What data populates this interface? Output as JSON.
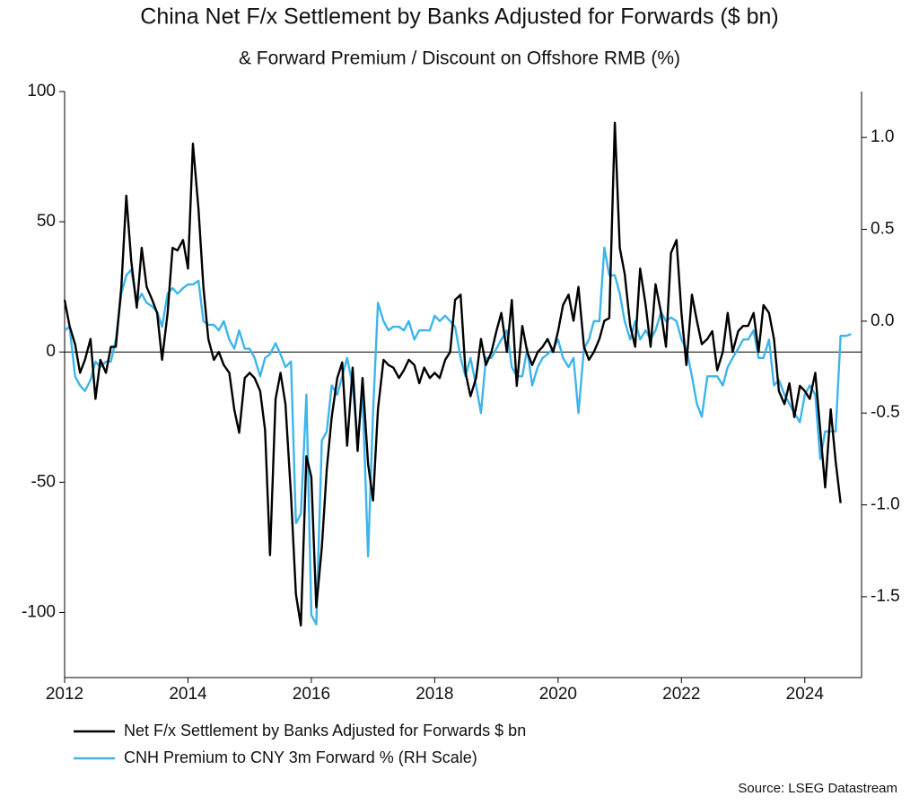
{
  "chart_data": {
    "type": "line",
    "title": "China Net F/x Settlement by Banks Adjusted for Forwards ($ bn)",
    "subtitle": "& Forward Premium / Discount on Offshore RMB (%)",
    "source": "Source: LSEG Datastream",
    "xlim": [
      2012,
      2024.92
    ],
    "xticks": [
      2012,
      2014,
      2016,
      2018,
      2020,
      2022,
      2024
    ],
    "ylim": [
      -125,
      100
    ],
    "yticks": [
      -100,
      -50,
      0,
      50,
      100
    ],
    "y2lim": [
      -1.94,
      1.25
    ],
    "y2ticks": [
      {
        "value": -1.5,
        "label": "-1.5"
      },
      {
        "value": -1,
        "label": "-1.0"
      },
      {
        "value": -0.5,
        "label": "-0.5"
      },
      {
        "value": 0,
        "label": "0.0"
      },
      {
        "value": 0.5,
        "label": "0.5"
      },
      {
        "value": 1,
        "label": "1.0"
      }
    ],
    "series": [
      {
        "name": "Net F/x Settlement by Banks Adjusted for Forwards $ bn",
        "color": "#000000",
        "axis": "y",
        "x": [
          2012,
          2012.08,
          2012.17,
          2012.25,
          2012.33,
          2012.42,
          2012.5,
          2012.58,
          2012.67,
          2012.75,
          2012.83,
          2012.92,
          2013,
          2013.08,
          2013.17,
          2013.25,
          2013.33,
          2013.42,
          2013.5,
          2013.58,
          2013.67,
          2013.75,
          2013.83,
          2013.92,
          2014,
          2014.08,
          2014.17,
          2014.25,
          2014.33,
          2014.42,
          2014.5,
          2014.58,
          2014.67,
          2014.75,
          2014.83,
          2014.92,
          2015,
          2015.08,
          2015.17,
          2015.25,
          2015.33,
          2015.42,
          2015.5,
          2015.58,
          2015.67,
          2015.75,
          2015.83,
          2015.92,
          2016,
          2016.08,
          2016.17,
          2016.25,
          2016.33,
          2016.42,
          2016.5,
          2016.58,
          2016.67,
          2016.75,
          2016.83,
          2016.92,
          2017,
          2017.08,
          2017.17,
          2017.25,
          2017.33,
          2017.42,
          2017.5,
          2017.58,
          2017.67,
          2017.75,
          2017.83,
          2017.92,
          2018,
          2018.08,
          2018.17,
          2018.25,
          2018.33,
          2018.42,
          2018.5,
          2018.58,
          2018.67,
          2018.75,
          2018.83,
          2018.92,
          2019,
          2019.08,
          2019.17,
          2019.25,
          2019.33,
          2019.42,
          2019.5,
          2019.58,
          2019.67,
          2019.75,
          2019.83,
          2019.92,
          2020,
          2020.08,
          2020.17,
          2020.25,
          2020.33,
          2020.42,
          2020.5,
          2020.58,
          2020.67,
          2020.75,
          2020.83,
          2020.92,
          2021,
          2021.08,
          2021.17,
          2021.25,
          2021.33,
          2021.42,
          2021.5,
          2021.58,
          2021.67,
          2021.75,
          2021.83,
          2021.92,
          2022,
          2022.08,
          2022.17,
          2022.25,
          2022.33,
          2022.42,
          2022.5,
          2022.58,
          2022.67,
          2022.75,
          2022.83,
          2022.92,
          2023,
          2023.08,
          2023.17,
          2023.25,
          2023.33,
          2023.42,
          2023.5,
          2023.58,
          2023.67,
          2023.75,
          2023.83,
          2023.92,
          2024,
          2024.08,
          2024.17,
          2024.25,
          2024.33,
          2024.42,
          2024.5,
          2024.58
        ],
        "values": [
          20,
          10,
          3,
          -8,
          -3,
          5,
          -18,
          -3,
          -8,
          2,
          2,
          25,
          60,
          35,
          17,
          40,
          25,
          20,
          15,
          -3,
          15,
          40,
          39,
          43,
          32,
          80,
          55,
          25,
          5,
          -3,
          0,
          -5,
          -8,
          -22,
          -31,
          -10,
          -8,
          -10,
          -15,
          -30,
          -78,
          -18,
          -8,
          -20,
          -55,
          -93,
          -105,
          -40,
          -48,
          -98,
          -75,
          -45,
          -25,
          -10,
          -4,
          -36,
          -6,
          -38,
          -10,
          -43,
          -57,
          -22,
          -3,
          -5,
          -6,
          -10,
          -7,
          -3,
          -5,
          -12,
          -6,
          -10,
          -8,
          -10,
          -3,
          0,
          20,
          22,
          -8,
          -17,
          -10,
          5,
          -5,
          0,
          8,
          15,
          0,
          20,
          -13,
          10,
          0,
          -5,
          0,
          2,
          5,
          0,
          8,
          18,
          22,
          12,
          25,
          2,
          -3,
          0,
          5,
          12,
          13,
          88,
          40,
          30,
          10,
          2,
          32,
          18,
          2,
          26,
          15,
          2,
          38,
          43,
          15,
          -5,
          22,
          12,
          3,
          5,
          8,
          -7,
          0,
          15,
          0,
          8,
          10,
          10,
          15,
          0,
          18,
          15,
          5,
          -15,
          -20,
          -12,
          -25,
          -13,
          -15,
          -18,
          -8,
          -30,
          -52,
          -22,
          -42,
          -58
        ]
      },
      {
        "name": "CNH Premium to CNY 3m Forward % (RH Scale)",
        "color": "#3db5ea",
        "axis": "y2",
        "x": [
          2012,
          2012.08,
          2012.17,
          2012.25,
          2012.33,
          2012.42,
          2012.5,
          2012.58,
          2012.67,
          2012.75,
          2012.83,
          2012.92,
          2013,
          2013.08,
          2013.17,
          2013.25,
          2013.33,
          2013.42,
          2013.5,
          2013.58,
          2013.67,
          2013.75,
          2013.83,
          2013.92,
          2014,
          2014.08,
          2014.17,
          2014.25,
          2014.33,
          2014.42,
          2014.5,
          2014.58,
          2014.67,
          2014.75,
          2014.83,
          2014.92,
          2015,
          2015.08,
          2015.17,
          2015.25,
          2015.33,
          2015.42,
          2015.5,
          2015.58,
          2015.67,
          2015.75,
          2015.83,
          2015.92,
          2016,
          2016.08,
          2016.17,
          2016.25,
          2016.33,
          2016.42,
          2016.5,
          2016.58,
          2016.67,
          2016.75,
          2016.83,
          2016.92,
          2017,
          2017.08,
          2017.17,
          2017.25,
          2017.33,
          2017.42,
          2017.5,
          2017.58,
          2017.67,
          2017.75,
          2017.83,
          2017.92,
          2018,
          2018.08,
          2018.17,
          2018.25,
          2018.33,
          2018.42,
          2018.5,
          2018.58,
          2018.67,
          2018.75,
          2018.83,
          2018.92,
          2019,
          2019.08,
          2019.17,
          2019.25,
          2019.33,
          2019.42,
          2019.5,
          2019.58,
          2019.67,
          2019.75,
          2019.83,
          2019.92,
          2020,
          2020.08,
          2020.17,
          2020.25,
          2020.33,
          2020.42,
          2020.5,
          2020.58,
          2020.67,
          2020.75,
          2020.83,
          2020.92,
          2021,
          2021.08,
          2021.17,
          2021.25,
          2021.33,
          2021.42,
          2021.5,
          2021.58,
          2021.67,
          2021.75,
          2021.83,
          2021.92,
          2022,
          2022.08,
          2022.17,
          2022.25,
          2022.33,
          2022.42,
          2022.5,
          2022.58,
          2022.67,
          2022.75,
          2022.83,
          2022.92,
          2023,
          2023.08,
          2023.17,
          2023.25,
          2023.33,
          2023.42,
          2023.5,
          2023.58,
          2023.67,
          2023.75,
          2023.83,
          2023.92,
          2024,
          2024.08,
          2024.17,
          2024.25,
          2024.33,
          2024.42,
          2024.5,
          2024.58,
          2024.67,
          2024.75
        ],
        "values": [
          -0.05,
          -0.03,
          -0.3,
          -0.35,
          -0.38,
          -0.32,
          -0.22,
          -0.25,
          -0.22,
          -0.22,
          -0.1,
          0.15,
          0.25,
          0.28,
          0.1,
          0.15,
          0.1,
          0.08,
          0.05,
          -0.03,
          0.15,
          0.18,
          0.15,
          0.18,
          0.2,
          0.2,
          0.22,
          0,
          -0.02,
          -0.02,
          -0.05,
          0,
          -0.1,
          -0.15,
          -0.05,
          -0.15,
          -0.15,
          -0.2,
          -0.3,
          -0.2,
          -0.18,
          -0.12,
          -0.18,
          -0.25,
          -0.22,
          -1.1,
          -1.05,
          -0.4,
          -1.6,
          -1.65,
          -0.65,
          -0.6,
          -0.35,
          -0.4,
          -0.3,
          -0.2,
          -0.35,
          -0.65,
          -0.4,
          -1.28,
          -0.5,
          0.1,
          0,
          -0.05,
          -0.03,
          -0.03,
          -0.05,
          0,
          -0.1,
          -0.05,
          -0.05,
          -0.05,
          0.03,
          0,
          0.03,
          0,
          -0.03,
          -0.2,
          -0.3,
          -0.2,
          -0.35,
          -0.5,
          -0.2,
          -0.2,
          -0.15,
          -0.1,
          -0.05,
          -0.25,
          -0.3,
          -0.3,
          -0.15,
          -0.35,
          -0.25,
          -0.2,
          -0.18,
          -0.15,
          -0.1,
          -0.2,
          -0.25,
          -0.2,
          -0.5,
          -0.15,
          -0.1,
          0,
          0,
          0.4,
          0.25,
          0.25,
          0.15,
          0,
          -0.1,
          0,
          -0.1,
          -0.05,
          -0.1,
          -0.05,
          0.05,
          0,
          0.02,
          0,
          -0.1,
          -0.15,
          -0.3,
          -0.45,
          -0.52,
          -0.3,
          -0.3,
          -0.3,
          -0.35,
          -0.25,
          -0.2,
          -0.15,
          -0.1,
          -0.1,
          -0.05,
          -0.2,
          -0.2,
          -0.1,
          -0.35,
          -0.32,
          -0.4,
          -0.45,
          -0.5,
          -0.55,
          -0.4,
          -0.35,
          -0.4,
          -0.75,
          -0.6,
          -0.6,
          -0.6,
          -0.08,
          -0.08,
          -0.07
        ]
      }
    ]
  }
}
